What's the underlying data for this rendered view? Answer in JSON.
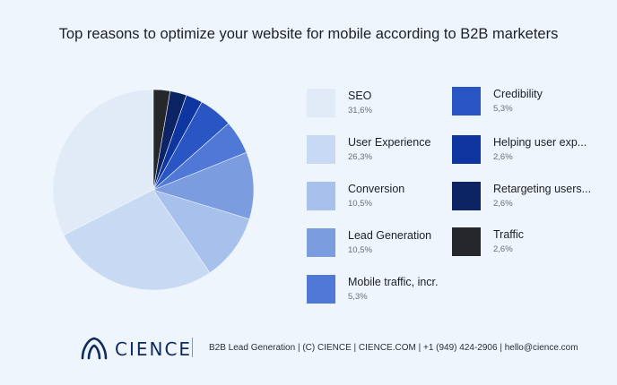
{
  "chart_data": {
    "type": "pie",
    "title": "Top reasons to optimize your website for mobile according to B2B marketers",
    "slices": [
      {
        "label": "SEO",
        "value": 31.6,
        "value_text": "31,6%",
        "color": "#e1ebf8"
      },
      {
        "label": "User Experience",
        "value": 26.3,
        "value_text": "26,3%",
        "color": "#c8d9f3"
      },
      {
        "label": "Conversion",
        "value": 10.5,
        "value_text": "10,5%",
        "color": "#a8c0ec"
      },
      {
        "label": "Lead Generation",
        "value": 10.5,
        "value_text": "10,5%",
        "color": "#7c9ce0"
      },
      {
        "label": "Mobile traffic, incr.",
        "value": 5.3,
        "value_text": "5,3%",
        "color": "#5078d6"
      },
      {
        "label": "Credibility",
        "value": 5.3,
        "value_text": "5,3%",
        "color": "#2a56c4"
      },
      {
        "label": "Helping user exp...",
        "value": 2.6,
        "value_text": "2,6%",
        "color": "#0f35a0"
      },
      {
        "label": "Retargeting users...",
        "value": 2.6,
        "value_text": "2,6%",
        "color": "#0c2464"
      },
      {
        "label": "Traffic",
        "value": 2.6,
        "value_text": "2,6%",
        "color": "#26272b"
      }
    ],
    "legend_position": "right"
  },
  "footer": {
    "brand": "CIENCE",
    "text": "B2B Lead Generation | (C) CIENCE | CIENCE.COM | +1 (949) 424-2906 | hello@cience.com",
    "logo_color": "#0f2a5c"
  }
}
